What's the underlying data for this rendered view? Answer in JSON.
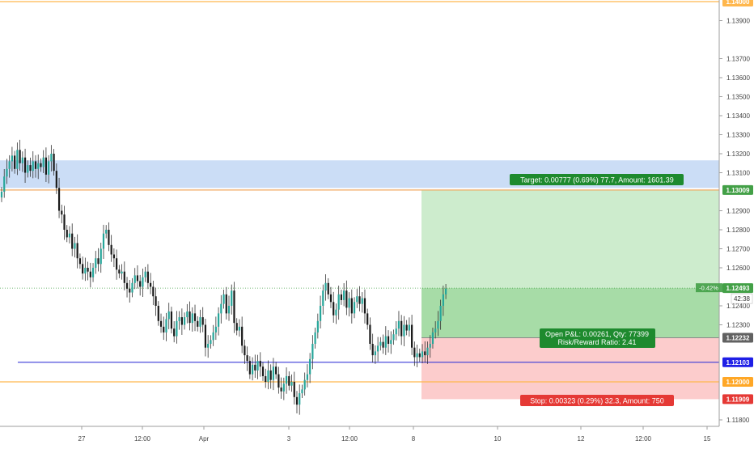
{
  "chart_data": {
    "type": "candlestick",
    "y_axis": {
      "side": "right",
      "ticks": [
        "1.14000",
        "1.13900",
        "1.13700",
        "1.13600",
        "1.13500",
        "1.13400",
        "1.13300",
        "1.13200",
        "1.13100",
        "1.13009",
        "1.12900",
        "1.12800",
        "1.12700",
        "1.12600",
        "1.12493",
        "1.12400",
        "1.12300",
        "1.12232",
        "1.12103",
        "1.12000",
        "1.11909",
        "1.11800"
      ],
      "plain_ticks": [
        "1.13900",
        "1.13700",
        "1.13600",
        "1.13500",
        "1.13400",
        "1.13300",
        "1.13200",
        "1.13100",
        "1.12900",
        "1.12800",
        "1.12700",
        "1.12600",
        "1.12400",
        "1.12300",
        "1.11800"
      ]
    },
    "x_axis": {
      "ticks": [
        "27",
        "12:00",
        "Apr",
        "3",
        "12:00",
        "8",
        "10",
        "12",
        "12:00",
        "15"
      ]
    },
    "price_badges": [
      {
        "label": "1.14000",
        "value": 1.14,
        "color": "#ffb74d",
        "text_color": "#ffffff"
      },
      {
        "label": "1.13009",
        "value": 1.13009,
        "color": "#43a047",
        "text_color": "#ffffff"
      },
      {
        "label": "1.12493",
        "value": 1.12493,
        "color": "#43a047",
        "text_color": "#ffffff"
      },
      {
        "label": "1.12232",
        "value": 1.12232,
        "color": "#616161",
        "text_color": "#ffffff"
      },
      {
        "label": "1.12103",
        "value": 1.12103,
        "color": "#1e1ee6",
        "text_color": "#ffffff"
      },
      {
        "label": "1.12000",
        "value": 1.12,
        "color": "#ffa726",
        "text_color": "#ffffff"
      },
      {
        "label": "1.11909",
        "value": 1.11909,
        "color": "#e53935",
        "text_color": "#ffffff"
      }
    ],
    "countdown": "42:38",
    "change_label": "-0.42%",
    "horizontal_lines": [
      {
        "value": 1.14,
        "color": "#ffb74d"
      },
      {
        "value": 1.13009,
        "color": "#f0a860"
      },
      {
        "value": 1.12103,
        "color": "#3a3ad8"
      },
      {
        "value": 1.12,
        "color": "#ffb74d"
      }
    ],
    "zone": {
      "from": 1.1302,
      "to": 1.13165,
      "color": "#c5d9f5"
    },
    "position": {
      "entry": 1.12232,
      "target": 1.13009,
      "stop": 1.11909,
      "profit_color": "#cdeccd",
      "profit_open_color": "#a7dca7",
      "loss_color": "#fccccc",
      "target_label": "Target: 0.00777 (0.69%) 77.7, Amount: 1601.39",
      "pnl_label_1": "Open P&L: 0.00261, Qty: 77399",
      "pnl_label_2": "Risk/Reward Ratio: 2.41",
      "stop_label": "Stop: 0.00323 (0.29%) 32.3, Amount: 750"
    },
    "colors": {
      "up": "#26a69a",
      "down": "#1a1a1a",
      "wick": "#333333",
      "axis_text": "#444444"
    },
    "closes": [
      1.13,
      1.1308,
      1.1312,
      1.1316,
      1.1319,
      1.1312,
      1.1322,
      1.1315,
      1.1318,
      1.131,
      1.1314,
      1.1311,
      1.1316,
      1.1312,
      1.1315,
      1.1313,
      1.1318,
      1.1309,
      1.1316,
      1.132,
      1.1311,
      1.1302,
      1.129,
      1.1288,
      1.128,
      1.1276,
      1.1278,
      1.127,
      1.1273,
      1.1265,
      1.1262,
      1.1257,
      1.126,
      1.1258,
      1.1255,
      1.126,
      1.1265,
      1.1262,
      1.127,
      1.1278,
      1.128,
      1.1272,
      1.1267,
      1.1265,
      1.1259,
      1.1257,
      1.1258,
      1.1252,
      1.1249,
      1.1247,
      1.1252,
      1.1256,
      1.1253,
      1.125,
      1.1255,
      1.1258,
      1.1252,
      1.125,
      1.1245,
      1.124,
      1.1232,
      1.1229,
      1.1226,
      1.1233,
      1.1237,
      1.1228,
      1.1224,
      1.1232,
      1.1234,
      1.123,
      1.1234,
      1.1237,
      1.1231,
      1.1236,
      1.1232,
      1.1229,
      1.1234,
      1.123,
      1.1218,
      1.122,
      1.1222,
      1.1226,
      1.1229,
      1.1236,
      1.1241,
      1.1246,
      1.1236,
      1.124,
      1.1248,
      1.1231,
      1.1227,
      1.1229,
      1.1219,
      1.1214,
      1.1211,
      1.1204,
      1.1209,
      1.1206,
      1.1211,
      1.1208,
      1.1203,
      1.12,
      1.1206,
      1.1201,
      1.1208,
      1.1204,
      1.1197,
      1.1195,
      1.1199,
      1.1203,
      1.1198,
      1.12,
      1.1192,
      1.1188,
      1.1194,
      1.1196,
      1.1201,
      1.1204,
      1.1212,
      1.122,
      1.1226,
      1.1232,
      1.124,
      1.1248,
      1.1252,
      1.1246,
      1.1242,
      1.1235,
      1.1238,
      1.1246,
      1.1243,
      1.1248,
      1.1239,
      1.1244,
      1.1236,
      1.1242,
      1.1245,
      1.1241,
      1.1244,
      1.1236,
      1.123,
      1.122,
      1.1214,
      1.1216,
      1.1219,
      1.1221,
      1.1218,
      1.1224,
      1.122,
      1.1222,
      1.1225,
      1.1228,
      1.1232,
      1.1224,
      1.123,
      1.1227,
      1.123,
      1.1218,
      1.1213,
      1.1215,
      1.1213,
      1.1216,
      1.1214,
      1.1218,
      1.122,
      1.1226,
      1.1228,
      1.1232,
      1.124,
      1.1246,
      1.1249
    ]
  }
}
